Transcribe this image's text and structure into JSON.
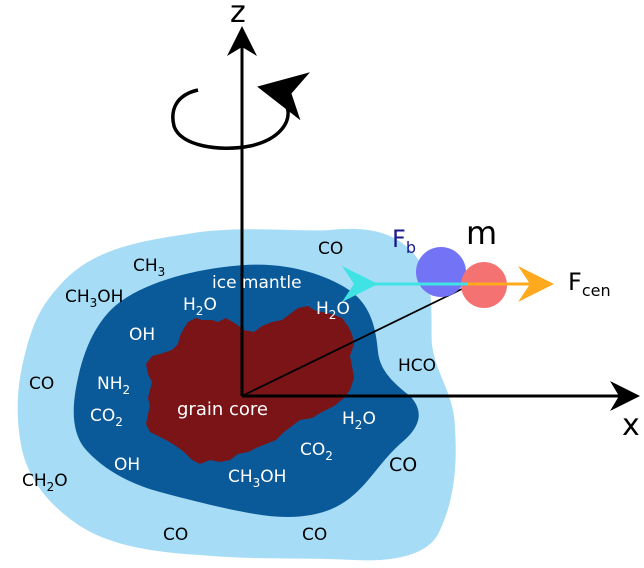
{
  "axes": {
    "z": "z",
    "x": "x"
  },
  "labels": {
    "ice_mantle": "ice mantle",
    "grain_core": "grain core",
    "mass": "m",
    "f_b_main": "F",
    "f_b_sub": "b",
    "f_cen_main": "F",
    "f_cen_sub": "cen"
  },
  "outer_molecules": {
    "ch3": {
      "main": "CH",
      "sub": "3"
    },
    "ch3oh_left": {
      "a": "CH",
      "s1": "3",
      "b": "OH"
    },
    "co_top": "CO",
    "co_left": "CO",
    "hco": "HCO",
    "ch2o": {
      "a": "CH",
      "s1": "2",
      "b": "O"
    },
    "co_right": "CO",
    "co_bottom_left": "CO",
    "co_bottom_right": "CO"
  },
  "mantle_molecules": {
    "h2o_top_left": {
      "a": "H",
      "s1": "2",
      "b": "O"
    },
    "h2o_top_right": {
      "a": "H",
      "s1": "2",
      "b": "O"
    },
    "oh_top": "OH",
    "nh2": {
      "a": "NH",
      "s1": "2"
    },
    "co2_left": {
      "a": "CO",
      "s1": "2"
    },
    "oh_bottom": "OH",
    "h2o_right": {
      "a": "H",
      "s1": "2",
      "b": "O"
    },
    "co2_bottom": {
      "a": "CO",
      "s1": "2"
    },
    "ch3oh_bottom": {
      "a": "CH",
      "s1": "3",
      "b": "OH"
    }
  },
  "colors": {
    "outer_halo": "#a6dcf5",
    "ice_mantle": "#0a5a9a",
    "grain_core": "#7a1416",
    "f_b_arrow": "#3fe3e3",
    "f_cen_arrow": "#ffaa1e",
    "blue_particle": "#7373f5",
    "red_particle": "#f57272",
    "f_b_label": "#1a1a8c"
  }
}
